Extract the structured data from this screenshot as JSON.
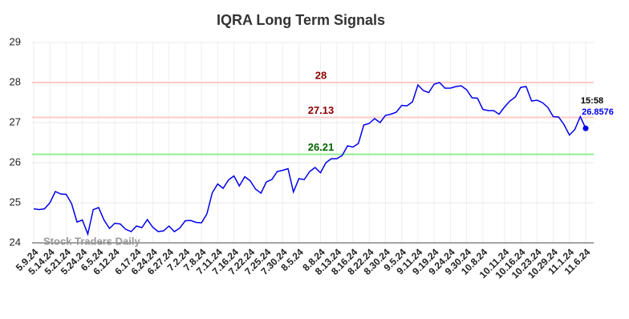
{
  "chart_data": {
    "type": "line",
    "title": "IQRA Long Term Signals",
    "categories": [
      "5.9.24",
      null,
      null,
      "5.14.24",
      null,
      null,
      "5.21.24",
      null,
      null,
      "5.24.24",
      null,
      null,
      "6.5.24",
      null,
      null,
      "6.12.24",
      null,
      null,
      null,
      "6.17.24",
      null,
      null,
      "6.24.24",
      null,
      null,
      "6.27.24",
      null,
      null,
      "7.2.24",
      null,
      null,
      "7.8.24",
      null,
      null,
      "7.11.24",
      null,
      null,
      "7.16.24",
      null,
      null,
      "7.22.24",
      null,
      null,
      "7.25.24",
      null,
      null,
      "7.30.24",
      null,
      null,
      "8.5.24",
      null,
      null,
      null,
      "8.8.24",
      null,
      null,
      "8.13.24",
      null,
      null,
      "8.16.24",
      null,
      null,
      "8.22.24",
      null,
      null,
      "8.30.24",
      null,
      null,
      "9.5.24",
      null,
      null,
      "9.11.24",
      null,
      null,
      "9.19.24",
      null,
      null,
      "9.24.24",
      null,
      null,
      "9.30.24",
      null,
      null,
      "10.8.24",
      null,
      null,
      null,
      "10.11.24",
      null,
      null,
      "10.16.24",
      null,
      null,
      "10.23.24",
      null,
      null,
      "10.29.24",
      null,
      null,
      "11.1.24",
      null,
      null,
      "11.6.24"
    ],
    "values": [
      24.85,
      24.83,
      24.85,
      25.0,
      25.28,
      25.22,
      25.21,
      24.98,
      24.52,
      24.57,
      24.22,
      24.83,
      24.88,
      24.57,
      24.36,
      24.49,
      24.47,
      24.34,
      24.28,
      24.42,
      24.38,
      24.58,
      24.39,
      24.28,
      24.3,
      24.42,
      24.28,
      24.37,
      24.55,
      24.56,
      24.51,
      24.5,
      24.72,
      25.25,
      25.47,
      25.36,
      25.57,
      25.67,
      25.42,
      25.65,
      25.55,
      25.34,
      25.24,
      25.52,
      25.58,
      25.78,
      25.81,
      25.85,
      25.27,
      25.6,
      25.58,
      25.78,
      25.88,
      25.75,
      26.0,
      26.1,
      26.1,
      26.18,
      26.42,
      26.39,
      26.48,
      26.94,
      26.98,
      27.1,
      27.0,
      27.18,
      27.21,
      27.26,
      27.43,
      27.42,
      27.52,
      27.94,
      27.8,
      27.75,
      27.96,
      28.0,
      27.86,
      27.86,
      27.9,
      27.92,
      27.82,
      27.62,
      27.61,
      27.33,
      27.3,
      27.3,
      27.21,
      27.39,
      27.54,
      27.64,
      27.88,
      27.9,
      27.54,
      27.56,
      27.5,
      27.38,
      27.15,
      27.14,
      26.95,
      26.69,
      26.83,
      27.15,
      26.8576
    ],
    "color": "#0000ee",
    "ylim": [
      24,
      29
    ],
    "yticks": [
      24,
      25,
      26,
      27,
      28,
      29
    ],
    "grid": true,
    "reference_lines": [
      {
        "value": 28,
        "color": "#ffc8c8",
        "label_color": "#8b0000"
      },
      {
        "value": 27.13,
        "color": "#ffc8c8",
        "label_color": "#8b0000"
      },
      {
        "value": 26.21,
        "color": "#90ee90",
        "label_color": "#006400"
      }
    ],
    "last_time": "15:58",
    "watermark": "Stock Traders Daily"
  }
}
